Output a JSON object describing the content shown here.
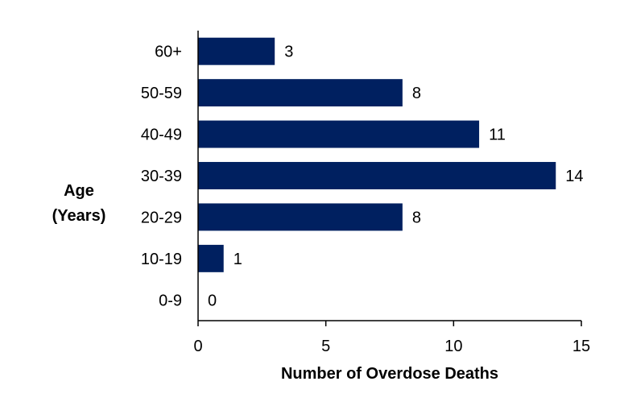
{
  "chart_data": {
    "type": "bar",
    "orientation": "horizontal",
    "categories": [
      "0-9",
      "10-19",
      "20-29",
      "30-39",
      "40-49",
      "50-59",
      "60+"
    ],
    "values": [
      0,
      1,
      8,
      14,
      11,
      8,
      3
    ],
    "xlabel": "Number of Overdose Deaths",
    "ylabel_line1": "Age",
    "ylabel_line2": "(Years)",
    "xlim": [
      0,
      15
    ],
    "xticks": [
      "0",
      "5",
      "10",
      "15"
    ],
    "xtick_values": [
      0,
      5,
      10,
      15
    ],
    "grid": false,
    "legend": "none",
    "bar_color": "#002060"
  }
}
